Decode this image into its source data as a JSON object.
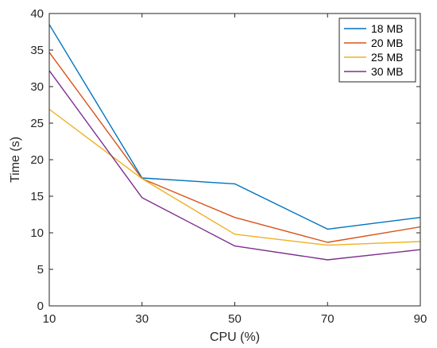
{
  "chart_data": {
    "type": "line",
    "title": "",
    "xlabel": "CPU (%)",
    "ylabel": "Time (s)",
    "x": [
      10,
      30,
      50,
      70,
      90
    ],
    "xlim": [
      10,
      90
    ],
    "ylim": [
      0,
      40
    ],
    "xticks": [
      "10",
      "30",
      "50",
      "70",
      "90"
    ],
    "yticks": [
      "0",
      "5",
      "10",
      "15",
      "20",
      "25",
      "30",
      "35",
      "40"
    ],
    "grid": false,
    "legend_position": "top-right",
    "series": [
      {
        "name": "18 MB",
        "color": "#0072BD",
        "values": [
          38.5,
          17.5,
          16.7,
          10.5,
          12.1
        ]
      },
      {
        "name": "20 MB",
        "color": "#D95319",
        "values": [
          34.7,
          17.4,
          12.1,
          8.7,
          10.8
        ]
      },
      {
        "name": "25 MB",
        "color": "#EDB120",
        "values": [
          26.9,
          17.4,
          9.8,
          8.3,
          8.8
        ]
      },
      {
        "name": "30 MB",
        "color": "#7E2F8E",
        "values": [
          32.2,
          14.8,
          8.2,
          6.3,
          7.7
        ]
      }
    ]
  }
}
